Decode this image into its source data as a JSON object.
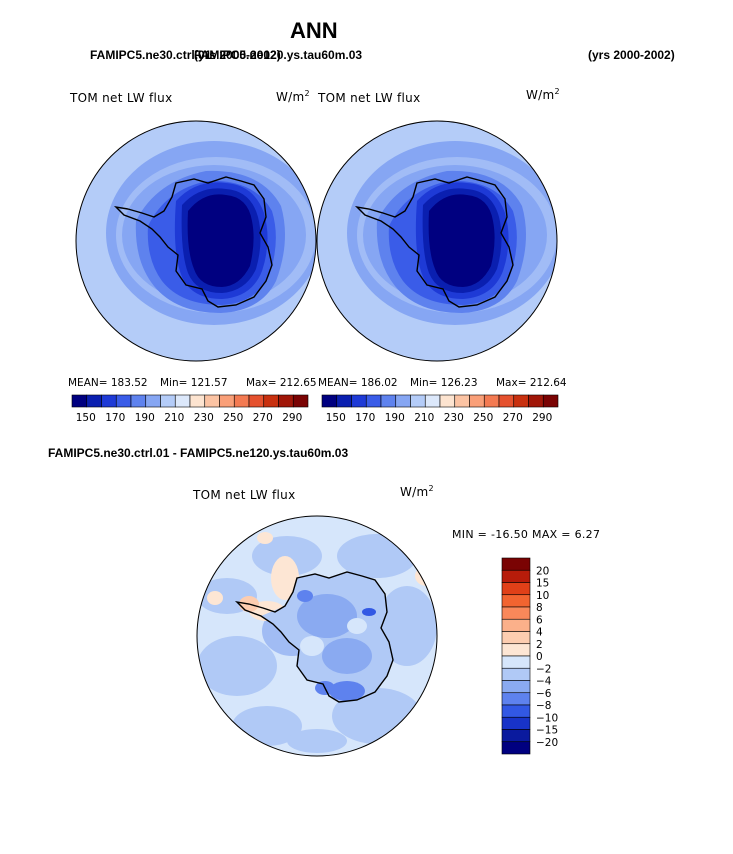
{
  "title": "ANN",
  "header": {
    "case1": "FAMIPC5.ne30.ctrl.01",
    "case1_years": "(yrs 2000-2002)",
    "case2": "FAMIPC5.ne120.ys.tau60m.03",
    "case2_years": "(yrs 2000-2002)"
  },
  "panels": [
    {
      "label": "TOM net LW flux",
      "units": "W/m",
      "units_sup": "2",
      "mean_text": "MEAN= 183.52",
      "min_text": "Min= 121.57",
      "max_text": "Max= 212.65"
    },
    {
      "label": "TOM net LW flux",
      "units": "W/m",
      "units_sup": "2",
      "mean_text": "MEAN= 186.02",
      "min_text": "Min= 126.23",
      "max_text": "Max= 212.64"
    }
  ],
  "horizontal_colorbar": {
    "tick_labels": [
      "150",
      "170",
      "190",
      "210",
      "230",
      "250",
      "270",
      "290"
    ],
    "colors": [
      "#000080",
      "#0a1fb0",
      "#1e3ad6",
      "#3a5ce8",
      "#5e82ee",
      "#86a6f3",
      "#b4ccf8",
      "#dce8fb",
      "#fde4d0",
      "#fbc3a3",
      "#f99f78",
      "#f37a52",
      "#e5512e",
      "#c8300f",
      "#a01608",
      "#7a0303"
    ]
  },
  "difference": {
    "header": "FAMIPC5.ne30.ctrl.01 - FAMIPC5.ne120.ys.tau60m.03",
    "label": "TOM net LW flux",
    "units": "W/m",
    "units_sup": "2",
    "minmax_text": "MIN = -16.50 MAX =    6.27",
    "colorbar": {
      "tick_labels": [
        "20",
        "15",
        "10",
        "8",
        "6",
        "4",
        "2",
        "0",
        "−2",
        "−4",
        "−6",
        "−8",
        "−10",
        "−15",
        "−20"
      ],
      "colors": [
        "#7a0303",
        "#b71c0a",
        "#e04018",
        "#f26430",
        "#f9885a",
        "#fbb08a",
        "#fdcdb0",
        "#fde6d4",
        "#d6e6fb",
        "#b0c9f6",
        "#8aaaf1",
        "#5e82ee",
        "#3258e4",
        "#1833c8",
        "#0a1a9e",
        "#000080"
      ]
    }
  }
}
